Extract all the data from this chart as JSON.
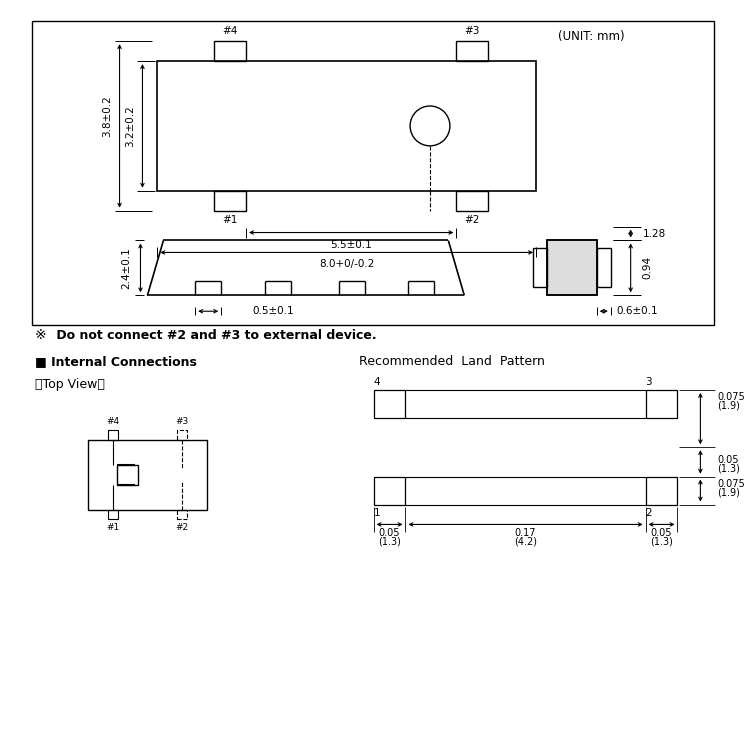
{
  "background_color": "#ffffff",
  "unit_text": "(UNIT: mm)",
  "warning_symbol": "※",
  "warning_text": " Do not connect #2 and #3 to external device.",
  "internal_conn_title": "■ Internal Connections",
  "top_view_text": "〈Top View〉",
  "land_pattern_title": "Recommended  Land  Pattern",
  "dim_38": "3.8±0.2",
  "dim_32": "3.2±0.2",
  "dim_55": "5.5±0.1",
  "dim_80": "8.0+0/-0.2",
  "dim_05s": "0.5±0.1",
  "dim_24": "2.4±0.1",
  "dim_128": "1.28",
  "dim_094": "0.94",
  "dim_06": "0.6±0.1",
  "lp_075a": "0.075",
  "lp_19a": "1.9",
  "lp_005": "0.05",
  "lp_13a": "1.3",
  "lp_075b": "0.075",
  "lp_19b": "1.9",
  "lp_h005a": "0.05",
  "lp_h13a": "1.3",
  "lp_h017": "0.17",
  "lp_h42": "4.2",
  "lp_h005b": "0.05",
  "lp_h13b": "1.3"
}
